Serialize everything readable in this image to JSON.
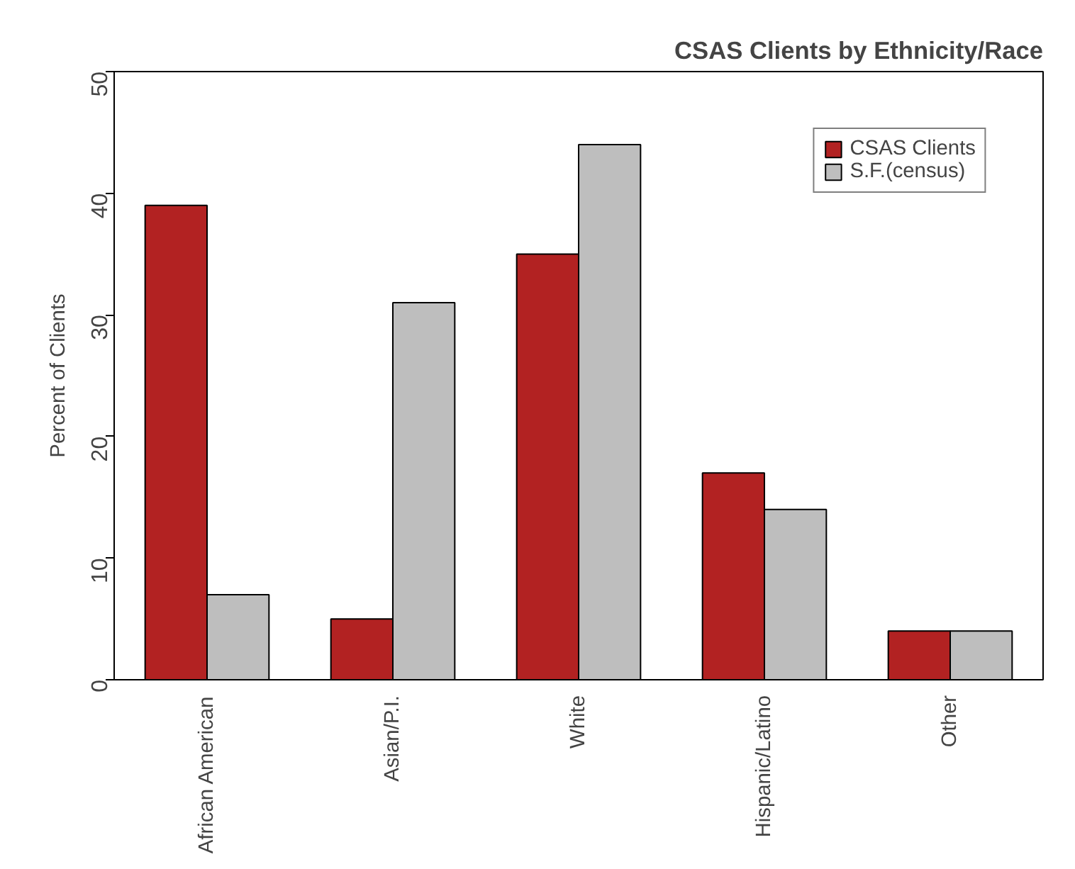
{
  "chart_data": {
    "type": "bar",
    "title": "CSAS Clients by Ethnicity/Race",
    "ylabel": "Percent of Clients",
    "categories": [
      "African American",
      "Asian/P.I.",
      "White",
      "Hispanic/Latino",
      "Other"
    ],
    "series": [
      {
        "name": "CSAS Clients",
        "color": "#b22222",
        "values": [
          39,
          5,
          35,
          17,
          4
        ]
      },
      {
        "name": "S.F.(census)",
        "color": "#bebebe",
        "values": [
          7,
          31,
          44,
          14,
          4
        ]
      }
    ],
    "ylim": [
      0,
      50
    ],
    "yticks": [
      0,
      10,
      20,
      30,
      40,
      50
    ],
    "grid": false,
    "legend": "top right"
  }
}
